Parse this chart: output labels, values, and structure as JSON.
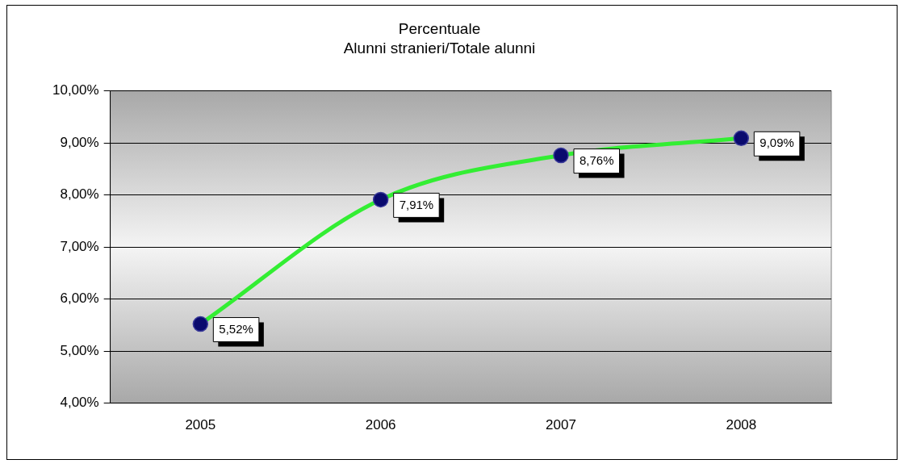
{
  "chart_data": {
    "type": "line",
    "title": "Percentuale",
    "subtitle": "Alunni stranieri/Totale alunni",
    "categories": [
      "2005",
      "2006",
      "2007",
      "2008"
    ],
    "series": [
      {
        "color": "#33ee33",
        "values": [
          5.52,
          7.91,
          8.76,
          9.09
        ],
        "value_labels": [
          "5,52%",
          "7,91%",
          "8,76%",
          "9,09%"
        ]
      }
    ],
    "ylim": [
      4,
      10
    ],
    "yticks": [
      {
        "value": 4,
        "label": "4,00%"
      },
      {
        "value": 5,
        "label": "5,00%"
      },
      {
        "value": 6,
        "label": "6,00%"
      },
      {
        "value": 7,
        "label": "7,00%"
      },
      {
        "value": 8,
        "label": "8,00%"
      },
      {
        "value": 9,
        "label": "9,00%"
      },
      {
        "value": 10,
        "label": "10,00%"
      }
    ],
    "grid": "y",
    "legend": false,
    "marker": "circle",
    "line_style": "solid"
  }
}
